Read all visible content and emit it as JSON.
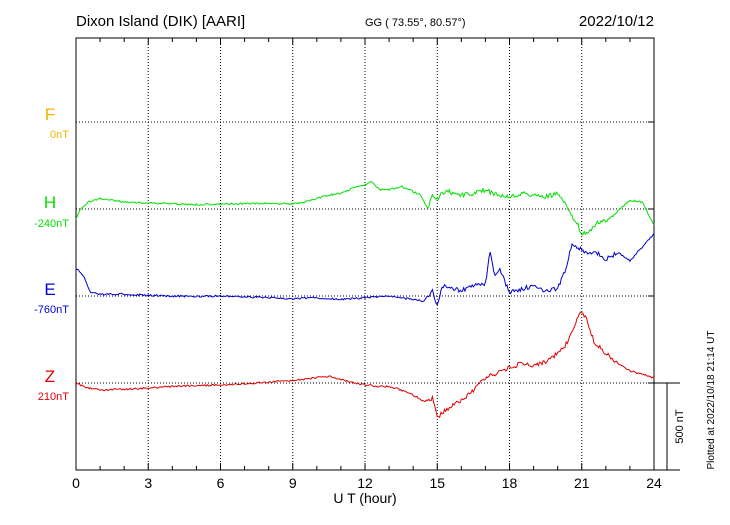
{
  "header": {
    "station": "Dixon Island (DIK)  [AARI]",
    "coords": "GG ( 73.55°,  80.57°)",
    "date": "2022/10/12"
  },
  "footer": {
    "plotted_note": "Plotted at 2022/10/18 21:14 UT"
  },
  "scale_bar_label": "500 nT",
  "colors": {
    "F": "#f0b400",
    "H": "#00e000",
    "E": "#0000d0",
    "Z": "#e00000",
    "axis": "#000000",
    "grid": "#000000"
  },
  "chart_data": {
    "type": "line",
    "xlabel": "U T (hour)",
    "xlim": [
      0,
      24
    ],
    "x_ticks": [
      0,
      3,
      6,
      9,
      12,
      15,
      18,
      21,
      24
    ],
    "x_tick_labels": [
      "0",
      "3",
      "6",
      "9",
      "12",
      "15",
      "18",
      "21",
      "24"
    ],
    "units": "nT",
    "scale_bar_nT": 500,
    "series": [
      {
        "name": "F",
        "baseline_label": "0nT",
        "color": "#f0b400",
        "x": [],
        "values": []
      },
      {
        "name": "H",
        "baseline_label": "-240nT",
        "color": "#00e000",
        "x": [
          0,
          0.2,
          0.5,
          1,
          1.5,
          2,
          3,
          4,
          5,
          6,
          7,
          8,
          9,
          9.5,
          10,
          10.5,
          11,
          11.5,
          12,
          12.3,
          12.6,
          13,
          13.5,
          14,
          14.3,
          14.6,
          14.8,
          15,
          15.2,
          15.5,
          16,
          16.5,
          17,
          17.3,
          17.6,
          18,
          18.5,
          19,
          19.5,
          20,
          20.3,
          20.6,
          20.8,
          21,
          21.3,
          21.6,
          22,
          22.5,
          23,
          23.5,
          24
        ],
        "values": [
          -300,
          -240,
          -200,
          -180,
          -190,
          -200,
          -205,
          -210,
          -215,
          -210,
          -210,
          -208,
          -210,
          -200,
          -180,
          -160,
          -150,
          -120,
          -100,
          -85,
          -130,
          -130,
          -110,
          -140,
          -160,
          -240,
          -160,
          -180,
          -150,
          -140,
          -160,
          -150,
          -130,
          -150,
          -160,
          -170,
          -150,
          -160,
          -170,
          -150,
          -210,
          -280,
          -320,
          -380,
          -380,
          -320,
          -310,
          -250,
          -190,
          -200,
          -330
        ]
      },
      {
        "name": "E",
        "baseline_label": "-760nT",
        "color": "#0000d0",
        "x": [
          0,
          0.3,
          0.6,
          1,
          2,
          3,
          4,
          5,
          6,
          7,
          8,
          9,
          10,
          11,
          12,
          13,
          14,
          14.5,
          14.8,
          15,
          15.2,
          15.5,
          16,
          16.5,
          17,
          17.2,
          17.4,
          17.6,
          18,
          18.5,
          19,
          19.5,
          20,
          20.3,
          20.6,
          21,
          21.3,
          21.6,
          22,
          22.5,
          23,
          23.5,
          24
        ],
        "values": [
          -600,
          -640,
          -740,
          -750,
          -750,
          -755,
          -760,
          -762,
          -760,
          -765,
          -770,
          -775,
          -770,
          -780,
          -770,
          -760,
          -780,
          -790,
          -720,
          -820,
          -700,
          -710,
          -730,
          -700,
          -690,
          -500,
          -650,
          -610,
          -740,
          -720,
          -700,
          -730,
          -720,
          -620,
          -460,
          -490,
          -520,
          -510,
          -550,
          -510,
          -560,
          -480,
          -400
        ]
      },
      {
        "name": "Z",
        "baseline_label": "210nT",
        "color": "#e00000",
        "x": [
          0,
          0.5,
          1,
          2,
          3,
          4,
          5,
          6,
          7,
          8,
          9,
          10,
          10.5,
          11,
          11.5,
          12,
          12.5,
          13,
          13.5,
          14,
          14.5,
          14.8,
          15,
          15.3,
          15.6,
          16,
          16.5,
          17,
          17.5,
          18,
          18.5,
          19,
          19.5,
          20,
          20.3,
          20.6,
          20.9,
          21.2,
          21.5,
          22,
          22.5,
          23,
          23.5,
          24
        ],
        "values": [
          210,
          180,
          170,
          175,
          180,
          190,
          195,
          200,
          205,
          215,
          225,
          240,
          250,
          230,
          210,
          200,
          190,
          190,
          170,
          140,
          100,
          120,
          10,
          50,
          80,
          110,
          170,
          240,
          270,
          300,
          320,
          310,
          330,
          380,
          420,
          500,
          620,
          580,
          450,
          380,
          320,
          280,
          260,
          240
        ]
      }
    ]
  }
}
